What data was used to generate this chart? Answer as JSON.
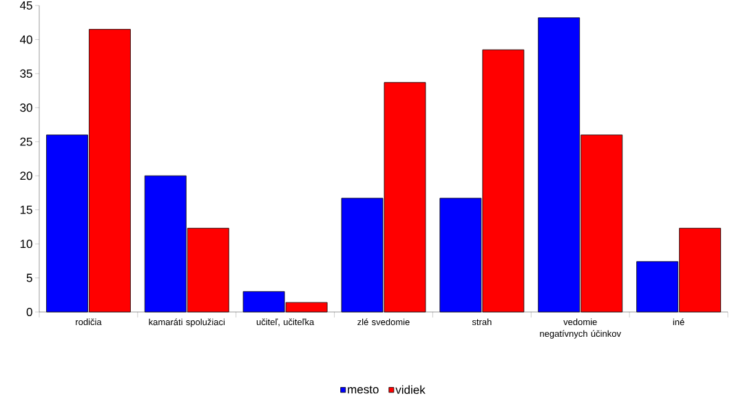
{
  "chart_data": {
    "type": "bar",
    "categories": [
      "rodičia",
      "kamaráti spolužiaci",
      "učiteľ, učiteľka",
      "zlé svedomie",
      "strah",
      "vedomie negatívnych účinkov",
      "iné"
    ],
    "series": [
      {
        "name": "mesto",
        "color": "#0000ff",
        "values": [
          26,
          20,
          3,
          16.7,
          16.7,
          43.2,
          7.4
        ]
      },
      {
        "name": "vidiek",
        "color": "#ff0000",
        "values": [
          41.5,
          12.3,
          1.4,
          33.7,
          38.5,
          26,
          12.3
        ]
      }
    ],
    "ylim": [
      0,
      45
    ],
    "yticks": [
      0,
      5,
      10,
      15,
      20,
      25,
      30,
      35,
      40,
      45
    ],
    "grid": false,
    "legend": "bottom"
  }
}
